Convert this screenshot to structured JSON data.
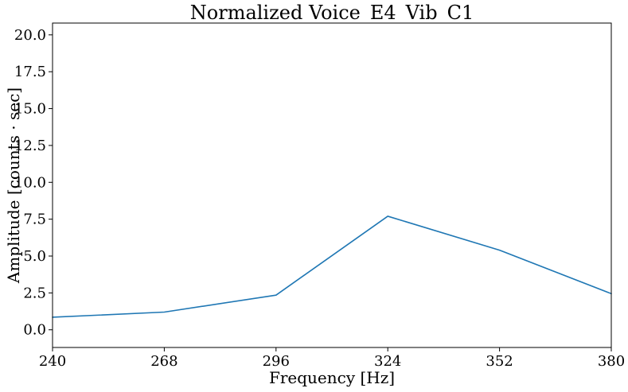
{
  "chart_data": {
    "type": "line",
    "title": "Normalized Voice_E4_Vib_C1",
    "xlabel": "Frequency [Hz]",
    "ylabel": "Amplitude [counts · sec]",
    "x": [
      240,
      268,
      296,
      324,
      352,
      380
    ],
    "series": [
      {
        "values": [
          0.85,
          1.2,
          2.35,
          7.7,
          5.4,
          2.45
        ]
      }
    ],
    "xlim": [
      240,
      380
    ],
    "ylim": [
      -1.2,
      20.8
    ],
    "xticks": [
      240,
      268,
      296,
      324,
      352,
      380
    ],
    "xtick_labels": [
      "240",
      "268",
      "296",
      "324",
      "352",
      "380"
    ],
    "yticks": [
      0.0,
      2.5,
      5.0,
      7.5,
      10.0,
      12.5,
      15.0,
      17.5,
      20.0
    ],
    "ytick_labels": [
      "0.0",
      "2.5",
      "5.0",
      "7.5",
      "10.0",
      "12.5",
      "15.0",
      "17.5",
      "20.0"
    ],
    "grid": false,
    "line_color": "#1f77b4",
    "axis_color": "#000000"
  }
}
